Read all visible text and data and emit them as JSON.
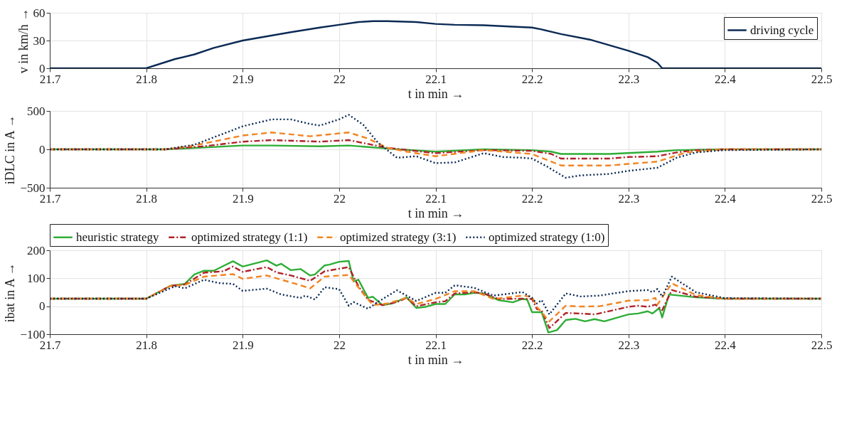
{
  "chart_data": [
    {
      "type": "line",
      "xlabel": "t in min →",
      "ylabel": "v in km/h →",
      "xlim": [
        21.7,
        22.5
      ],
      "xticks": [
        21.7,
        21.8,
        21.9,
        22,
        22.1,
        22.2,
        22.3,
        22.4,
        22.5
      ],
      "ylim": [
        0,
        60
      ],
      "yticks": [
        0,
        30,
        60
      ],
      "grid": true,
      "legend": "top right",
      "series": [
        {
          "name": "driving cycle",
          "color": "#0b2a55",
          "line_style": "solid",
          "x": [
            21.7,
            21.8,
            21.83,
            21.85,
            21.87,
            21.9,
            21.95,
            21.98,
            22,
            22.02,
            22.035,
            22.05,
            22.08,
            22.1,
            22.12,
            22.15,
            22.18,
            22.2,
            22.21,
            22.23,
            22.26,
            22.3,
            22.32,
            22.33,
            22.335,
            22.5
          ],
          "values": [
            0,
            0,
            10,
            15,
            22,
            30,
            39,
            44,
            47,
            50,
            51,
            51,
            50,
            48,
            47,
            46.5,
            45,
            44,
            42,
            37,
            31,
            19,
            12,
            6,
            0,
            0
          ]
        }
      ]
    },
    {
      "type": "line",
      "xlabel": "t in min →",
      "ylabel": "iDLC in A →",
      "xlim": [
        21.7,
        22.5
      ],
      "xticks": [
        21.7,
        21.8,
        21.9,
        22,
        22.1,
        22.2,
        22.3,
        22.4,
        22.5
      ],
      "ylim": [
        -500,
        500
      ],
      "yticks": [
        -500,
        0,
        500
      ],
      "grid": true,
      "legend": false,
      "series": [
        {
          "color": "#2eae36",
          "line_style": "solid",
          "x": [
            21.7,
            21.82,
            21.9,
            21.93,
            21.98,
            22.01,
            22.03,
            22.05,
            22.1,
            22.15,
            22.2,
            22.22,
            22.23,
            22.28,
            22.33,
            22.35,
            22.4,
            22.5
          ],
          "values": [
            0,
            0,
            50,
            50,
            40,
            50,
            30,
            10,
            -30,
            0,
            -10,
            -30,
            -60,
            -60,
            -30,
            -10,
            0,
            0
          ]
        },
        {
          "color": "#b0232a",
          "line_style": "dashdot",
          "x": [
            21.7,
            21.82,
            21.86,
            21.9,
            21.93,
            21.98,
            22.01,
            22.03,
            22.05,
            22.1,
            22.15,
            22.2,
            22.22,
            22.23,
            22.28,
            22.3,
            22.33,
            22.35,
            22.37,
            22.4,
            22.5
          ],
          "values": [
            0,
            0,
            40,
            100,
            120,
            100,
            120,
            70,
            20,
            -50,
            -10,
            -20,
            -60,
            -120,
            -120,
            -100,
            -90,
            -40,
            -10,
            0,
            0
          ]
        },
        {
          "color": "#f28522",
          "line_style": "dashed",
          "x": [
            21.7,
            21.82,
            21.85,
            21.9,
            21.93,
            21.97,
            22.01,
            22.03,
            22.05,
            22.07,
            22.1,
            22.15,
            22.2,
            22.23,
            22.28,
            22.3,
            22.33,
            22.36,
            22.4,
            22.5
          ],
          "values": [
            0,
            0,
            50,
            180,
            220,
            170,
            220,
            140,
            20,
            -30,
            -90,
            -10,
            -60,
            -210,
            -210,
            -190,
            -160,
            -40,
            0,
            0
          ]
        },
        {
          "color": "#0b2a55",
          "line_style": "dotted",
          "x": [
            21.7,
            21.82,
            21.85,
            21.9,
            21.93,
            21.95,
            21.97,
            21.98,
            22,
            22.01,
            22.025,
            22.04,
            22.06,
            22.08,
            22.1,
            22.12,
            22.15,
            22.17,
            22.19,
            22.2,
            22.215,
            22.235,
            22.25,
            22.28,
            22.3,
            22.33,
            22.35,
            22.37,
            22.4,
            22.5
          ],
          "values": [
            0,
            0,
            60,
            300,
            390,
            390,
            330,
            310,
            390,
            450,
            320,
            90,
            -110,
            -90,
            -180,
            -170,
            -50,
            -100,
            -110,
            -120,
            -220,
            -370,
            -340,
            -320,
            -280,
            -240,
            -110,
            -40,
            -10,
            0
          ]
        }
      ]
    },
    {
      "type": "line",
      "xlabel": "t in min →",
      "ylabel": "ibat in A →",
      "xlim": [
        21.7,
        22.5
      ],
      "xticks": [
        21.7,
        21.8,
        21.9,
        22,
        22.1,
        22.2,
        22.3,
        22.4,
        22.5
      ],
      "ylim": [
        -100,
        200
      ],
      "yticks": [
        -100,
        0,
        100,
        200
      ],
      "grid": true,
      "legend": "top",
      "series": [
        {
          "name": "heuristic strategy",
          "color": "#2eae36",
          "line_style": "solid",
          "x": [
            21.7,
            21.8,
            21.825,
            21.84,
            21.85,
            21.86,
            21.87,
            21.88,
            21.89,
            21.9,
            21.925,
            21.935,
            21.94,
            21.95,
            21.96,
            21.97,
            21.975,
            21.985,
            21.99,
            22,
            22.01,
            22.015,
            22.02,
            22.03,
            22.035,
            22.045,
            22.055,
            22.07,
            22.08,
            22.09,
            22.1,
            22.11,
            22.12,
            22.13,
            22.14,
            22.15,
            22.165,
            22.18,
            22.19,
            22.195,
            22.2,
            22.21,
            22.217,
            22.226,
            22.235,
            22.245,
            22.255,
            22.265,
            22.275,
            22.3,
            22.31,
            22.32,
            22.325,
            22.332,
            22.335,
            22.342,
            22.37,
            22.4,
            22.5
          ],
          "values": [
            27,
            27,
            73,
            80,
            114,
            127,
            127,
            144,
            161,
            142,
            164,
            145,
            152,
            129,
            133,
            110,
            114,
            146,
            149,
            159,
            162,
            89,
            95,
            30,
            34,
            4,
            10,
            32,
            -6,
            -2,
            8,
            8,
            43,
            42,
            48,
            46,
            22,
            14,
            26,
            24,
            -21,
            -21,
            -94,
            -85,
            -49,
            -45,
            -54,
            -46,
            -54,
            -29,
            -26,
            -18,
            -26,
            -6,
            -40,
            42,
            32,
            27,
            27
          ]
        },
        {
          "name": "optimized strategy (1:1)",
          "color": "#b0232a",
          "line_style": "dashdot",
          "x": [
            21.7,
            21.8,
            21.825,
            21.84,
            21.86,
            21.88,
            21.89,
            21.9,
            21.925,
            21.935,
            21.95,
            21.97,
            21.985,
            22.01,
            22.02,
            22.03,
            22.045,
            22.06,
            22.07,
            22.08,
            22.1,
            22.11,
            22.12,
            22.14,
            22.15,
            22.165,
            22.19,
            22.2,
            22.205,
            22.21,
            22.218,
            22.235,
            22.25,
            22.265,
            22.3,
            22.31,
            22.32,
            22.328,
            22.335,
            22.345,
            22.37,
            22.4,
            22.5
          ],
          "values": [
            27,
            27,
            73,
            78,
            120,
            125,
            142,
            123,
            140,
            121,
            110,
            91,
            125,
            140,
            72,
            23,
            4,
            15,
            30,
            0,
            14,
            18,
            46,
            50,
            46,
            26,
            27,
            26,
            -10,
            -14,
            -78,
            -24,
            -26,
            -29,
            -2,
            2,
            -2,
            6,
            -14,
            58,
            34,
            27,
            27
          ]
        },
        {
          "name": "optimized strategy (3:1)",
          "color": "#f28522",
          "line_style": "dashed",
          "x": [
            21.7,
            21.8,
            21.825,
            21.84,
            21.86,
            21.89,
            21.9,
            21.925,
            21.94,
            21.955,
            21.97,
            21.985,
            22.01,
            22.025,
            22.035,
            22.05,
            22.07,
            22.08,
            22.1,
            22.12,
            22.14,
            22.16,
            22.19,
            22.2,
            22.205,
            22.218,
            22.235,
            22.25,
            22.27,
            22.3,
            22.32,
            22.328,
            22.33,
            22.345,
            22.37,
            22.4,
            22.5
          ],
          "values": [
            27,
            27,
            73,
            76,
            106,
            115,
            98,
            110,
            95,
            80,
            64,
            106,
            112,
            45,
            4,
            10,
            30,
            8,
            26,
            54,
            54,
            26,
            38,
            34,
            -2,
            -54,
            2,
            -1,
            0,
            20,
            22,
            30,
            6,
            82,
            40,
            27,
            27
          ]
        },
        {
          "name": "optimized strategy (1:0)",
          "color": "#0b2a55",
          "line_style": "dotted",
          "x": [
            21.7,
            21.8,
            21.83,
            21.84,
            21.86,
            21.875,
            21.89,
            21.9,
            21.925,
            21.94,
            21.96,
            21.965,
            21.975,
            21.985,
            22,
            22.01,
            22.015,
            22.03,
            22.04,
            22.06,
            22.08,
            22.1,
            22.11,
            22.12,
            22.14,
            22.16,
            22.19,
            22.2,
            22.205,
            22.21,
            22.218,
            22.235,
            22.25,
            22.27,
            22.3,
            22.32,
            22.325,
            22.33,
            22.335,
            22.345,
            22.37,
            22.4,
            22.5
          ],
          "values": [
            27,
            27,
            72,
            64,
            95,
            83,
            80,
            55,
            63,
            42,
            30,
            38,
            24,
            68,
            61,
            2,
            15,
            -9,
            15,
            57,
            19,
            48,
            48,
            75,
            66,
            38,
            51,
            30,
            10,
            22,
            -29,
            46,
            35,
            38,
            54,
            58,
            50,
            62,
            34,
            106,
            50,
            29,
            27
          ]
        }
      ]
    }
  ]
}
